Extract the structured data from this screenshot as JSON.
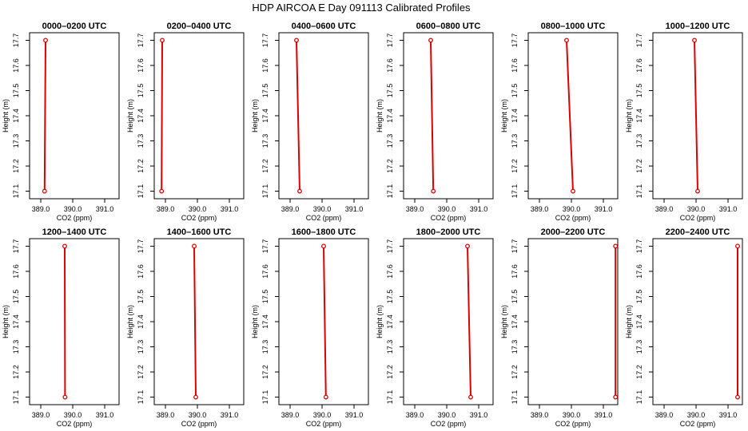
{
  "figure": {
    "title": "HDP AIRCOA E  Day 091113  Calibrated Profiles",
    "xlabel": "CO2 (ppm)",
    "ylabel": "Height (m)",
    "xticks": [
      "389.0",
      "390.0",
      "391.0"
    ],
    "yticks": [
      "17.1",
      "17.2",
      "17.3",
      "17.4",
      "17.5",
      "17.6",
      "17.7"
    ],
    "series_color": "#dd0000"
  },
  "chart_data": [
    {
      "type": "line",
      "title": "0000–0200 UTC",
      "xlabel": "CO2 (ppm)",
      "ylabel": "Height (m)",
      "xlim": [
        388.65,
        391.45
      ],
      "ylim": [
        17.07,
        17.73
      ],
      "grid": false,
      "x": [
        389.15,
        389.12
      ],
      "y": [
        17.7,
        17.1
      ]
    },
    {
      "type": "line",
      "title": "0200–0400 UTC",
      "xlabel": "CO2 (ppm)",
      "ylabel": "Height (m)",
      "xlim": [
        388.65,
        391.45
      ],
      "ylim": [
        17.07,
        17.73
      ],
      "grid": false,
      "x": [
        388.9,
        388.88
      ],
      "y": [
        17.7,
        17.1
      ]
    },
    {
      "type": "line",
      "title": "0400–0600 UTC",
      "xlabel": "CO2 (ppm)",
      "ylabel": "Height (m)",
      "xlim": [
        388.65,
        391.45
      ],
      "ylim": [
        17.07,
        17.73
      ],
      "grid": false,
      "x": [
        389.2,
        389.3
      ],
      "y": [
        17.7,
        17.1
      ]
    },
    {
      "type": "line",
      "title": "0600–0800 UTC",
      "xlabel": "CO2 (ppm)",
      "ylabel": "Height (m)",
      "xlim": [
        388.65,
        391.45
      ],
      "ylim": [
        17.07,
        17.73
      ],
      "grid": false,
      "x": [
        389.5,
        389.58
      ],
      "y": [
        17.7,
        17.1
      ]
    },
    {
      "type": "line",
      "title": "0800–1000 UTC",
      "xlabel": "CO2 (ppm)",
      "ylabel": "Height (m)",
      "xlim": [
        388.65,
        391.45
      ],
      "ylim": [
        17.07,
        17.73
      ],
      "grid": false,
      "x": [
        389.85,
        390.05
      ],
      "y": [
        17.7,
        17.1
      ]
    },
    {
      "type": "line",
      "title": "1000–1200 UTC",
      "xlabel": "CO2 (ppm)",
      "ylabel": "Height (m)",
      "xlim": [
        388.65,
        391.45
      ],
      "ylim": [
        17.07,
        17.73
      ],
      "grid": false,
      "x": [
        389.95,
        390.05
      ],
      "y": [
        17.7,
        17.1
      ]
    },
    {
      "type": "line",
      "title": "1200–1400 UTC",
      "xlabel": "CO2 (ppm)",
      "ylabel": "Height (m)",
      "xlim": [
        388.65,
        391.45
      ],
      "ylim": [
        17.07,
        17.73
      ],
      "grid": false,
      "x": [
        389.75,
        389.76
      ],
      "y": [
        17.7,
        17.1
      ]
    },
    {
      "type": "line",
      "title": "1400–1600 UTC",
      "xlabel": "CO2 (ppm)",
      "ylabel": "Height (m)",
      "xlim": [
        388.65,
        391.45
      ],
      "ylim": [
        17.07,
        17.73
      ],
      "grid": false,
      "x": [
        389.9,
        389.95
      ],
      "y": [
        17.7,
        17.1
      ]
    },
    {
      "type": "line",
      "title": "1600–1800 UTC",
      "xlabel": "CO2 (ppm)",
      "ylabel": "Height (m)",
      "xlim": [
        388.65,
        391.45
      ],
      "ylim": [
        17.07,
        17.73
      ],
      "grid": false,
      "x": [
        390.05,
        390.12
      ],
      "y": [
        17.7,
        17.1
      ]
    },
    {
      "type": "line",
      "title": "1800–2000 UTC",
      "xlabel": "CO2 (ppm)",
      "ylabel": "Height (m)",
      "xlim": [
        388.65,
        391.45
      ],
      "ylim": [
        17.07,
        17.73
      ],
      "grid": false,
      "x": [
        390.65,
        390.75
      ],
      "y": [
        17.7,
        17.1
      ]
    },
    {
      "type": "line",
      "title": "2000–2200 UTC",
      "xlabel": "CO2 (ppm)",
      "ylabel": "Height (m)",
      "xlim": [
        388.65,
        391.45
      ],
      "ylim": [
        17.07,
        17.73
      ],
      "grid": false,
      "x": [
        391.38,
        391.38
      ],
      "y": [
        17.7,
        17.1
      ]
    },
    {
      "type": "line",
      "title": "2200–2400 UTC",
      "xlabel": "CO2 (ppm)",
      "ylabel": "Height (m)",
      "xlim": [
        388.65,
        391.45
      ],
      "ylim": [
        17.07,
        17.73
      ],
      "grid": false,
      "x": [
        391.3,
        391.3
      ],
      "y": [
        17.7,
        17.1
      ]
    }
  ]
}
